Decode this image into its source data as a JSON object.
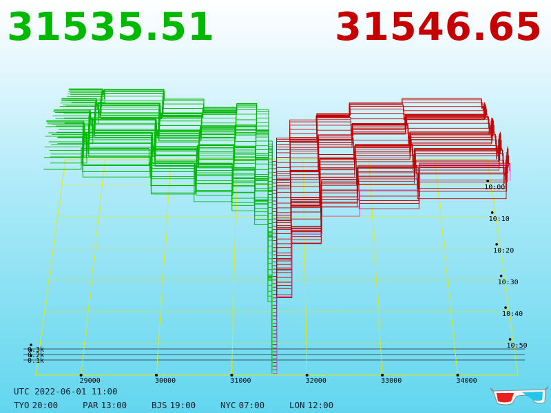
{
  "header": {
    "bid_price": "31535.51",
    "ask_price": "31546.65"
  },
  "footer": {
    "utc_label": "UTC",
    "utc_datetime": "2022-06-01 11:00",
    "timezones": [
      {
        "label": "TYO",
        "time": "20:00"
      },
      {
        "label": "PAR",
        "time": "13:00"
      },
      {
        "label": "BJS",
        "time": "19:00"
      },
      {
        "label": "NYC",
        "time": "07:00"
      },
      {
        "label": "LON",
        "time": "12:00"
      }
    ]
  },
  "icons": {
    "glasses": "3d-glasses-icon"
  },
  "colors": {
    "bid": "#00b800",
    "ask": "#c40000",
    "grid": "#e8e800",
    "latest_ask": "#d040e0",
    "volume_line": "#202830"
  },
  "chart_data": {
    "type": "3d-depth",
    "x_axis": {
      "tick_labels": [
        "29000",
        "30000",
        "31000",
        "32000",
        "33000",
        "34000"
      ],
      "tick_values": [
        29000,
        30000,
        31000,
        32000,
        33000,
        34000
      ],
      "range": [
        28400,
        34800
      ]
    },
    "time_axis": {
      "tick_labels": [
        "10:00",
        "10:10",
        "10:20",
        "10:30",
        "10:40",
        "10:50"
      ],
      "tick_minutes": [
        0,
        10,
        20,
        30,
        40,
        50
      ],
      "range_minutes": [
        -8,
        60
      ]
    },
    "volume_axis": {
      "tick_labels": [
        "0.1k",
        "0.2k",
        "0.3k"
      ],
      "tick_values": [
        100,
        200,
        300
      ]
    },
    "mid_price": 31540,
    "snapshots": 60,
    "bid_levels": [
      {
        "price": 28500,
        "cum_volume": 1000
      },
      {
        "price": 29000,
        "cum_volume": 960
      },
      {
        "price": 29900,
        "cum_volume": 840
      },
      {
        "price": 30500,
        "cum_volume": 810
      },
      {
        "price": 31000,
        "cum_volume": 790
      },
      {
        "price": 31300,
        "cum_volume": 690
      },
      {
        "price": 31480,
        "cum_volume": 320
      },
      {
        "price": 31535,
        "cum_volume": 0
      }
    ],
    "ask_levels": [
      {
        "price": 31546,
        "cum_volume": 0
      },
      {
        "price": 31600,
        "cum_volume": 320
      },
      {
        "price": 31800,
        "cum_volume": 560
      },
      {
        "price": 32200,
        "cum_volume": 740
      },
      {
        "price": 32700,
        "cum_volume": 800
      },
      {
        "price": 33500,
        "cum_volume": 840
      },
      {
        "price": 34700,
        "cum_volume": 880
      }
    ]
  }
}
